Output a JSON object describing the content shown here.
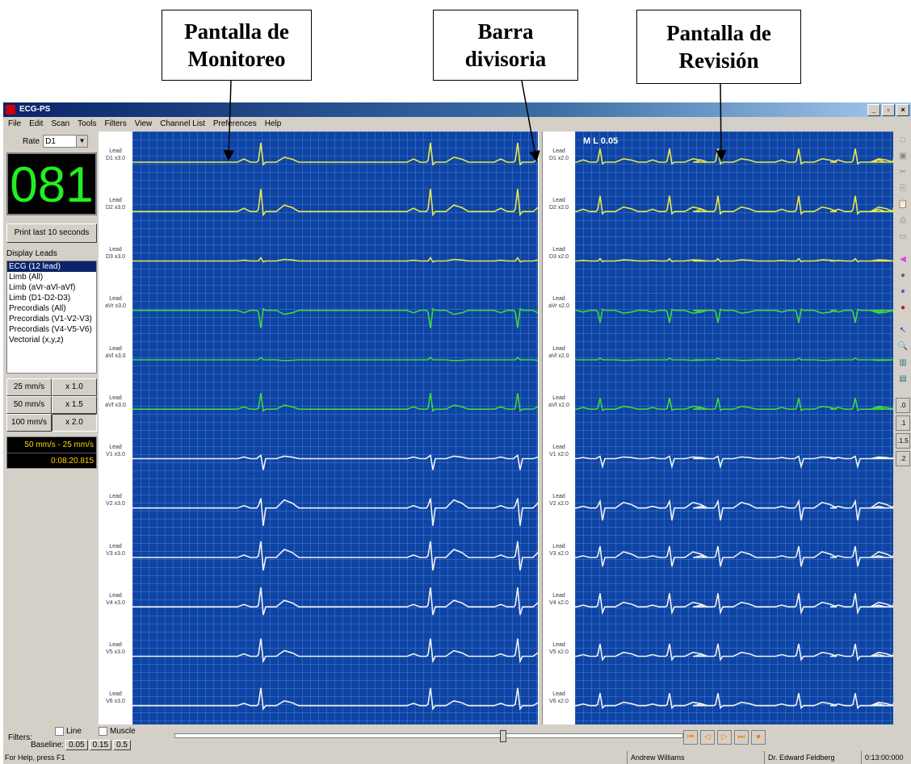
{
  "callouts": [
    {
      "line1": "Pantalla de",
      "line2": "Monitoreo"
    },
    {
      "line1": "Barra",
      "line2": "divisoria"
    },
    {
      "line1": "Pantalla de",
      "line2": "Revisión"
    }
  ],
  "window": {
    "title": "ECG-PS",
    "controls": {
      "minimize": "_",
      "maximize": "▫",
      "close": "×"
    }
  },
  "menu": [
    "File",
    "Edit",
    "Scan",
    "Tools",
    "Filters",
    "View",
    "Channel List",
    "Preferences",
    "Help"
  ],
  "left_panel": {
    "rate_label": "Rate",
    "rate_value": "D1",
    "heart_rate": "081",
    "print_button": "Print last 10 seconds",
    "display_leads_label": "Display Leads",
    "lead_options": [
      "ECG (12 lead)",
      "Limb (All)",
      "Limb (aVr-aVl-aVf)",
      "Limb (D1-D2-D3)",
      "Precordials (All)",
      "Precordials (V1-V2-V3)",
      "Precordials (V4-V5-V6)",
      "Vectorial (x,y,z)"
    ],
    "selected_lead_option": "ECG (12 lead)",
    "speed_buttons": [
      "25 mm/s",
      "50 mm/s",
      "100 mm/s"
    ],
    "gain_buttons": [
      "x 1.0",
      "x 1.5",
      "x 2.0"
    ],
    "speed_status": "50 mm/s - 25 mm/s",
    "time_status": "0:08:20.815"
  },
  "monitor": {
    "lead_word": "Lead",
    "leads": [
      {
        "name": "D1 x3.0",
        "color": "#e8e84a"
      },
      {
        "name": "D2 x3.0",
        "color": "#e8e84a"
      },
      {
        "name": "D3 x3.0",
        "color": "#e8e84a"
      },
      {
        "name": "aVr x3.0",
        "color": "#3ed63e"
      },
      {
        "name": "aVl x3.0",
        "color": "#3ed63e"
      },
      {
        "name": "aVf x3.0",
        "color": "#3ed63e"
      },
      {
        "name": "V1 x3.0",
        "color": "#f2f2f2"
      },
      {
        "name": "V2 x3.0",
        "color": "#f2f2f2"
      },
      {
        "name": "V3 x3.0",
        "color": "#f2f2f2"
      },
      {
        "name": "V4 x3.0",
        "color": "#f2f2f2"
      },
      {
        "name": "V5 x3.0",
        "color": "#f2f2f2"
      },
      {
        "name": "V6 x3.0",
        "color": "#f2f2f2"
      }
    ]
  },
  "review": {
    "ml_label": "M L 0.05",
    "leads": [
      "D1 x2.0",
      "D2 x2.0",
      "D3 x2.0",
      "aVr x2.0",
      "aVl x2.0",
      "aVf x2.0",
      "V1 x2.0",
      "V2 x2.0",
      "V3 x2.0",
      "V4 x2.0",
      "V5 x2.0",
      "V6 x2.0"
    ]
  },
  "toolbar_icons": [
    "new-icon",
    "save-icon",
    "cut-icon",
    "copy-icon",
    "paste-icon",
    "print-icon",
    "preview-icon",
    "marker-icon",
    "stop-icon",
    "pause-icon",
    "record-icon",
    "pointer-icon",
    "zoom-icon",
    "measure-icon",
    "report-icon"
  ],
  "toolbar_glyphs": [
    "□",
    "▣",
    "✂",
    "⎘",
    "📋",
    "⎙",
    "▭",
    "◀",
    "●",
    "⏸",
    "●",
    "↖",
    "🔍",
    "▥",
    "▤"
  ],
  "scale_buttons": [
    ".0",
    ".1",
    ".1.5",
    ".2"
  ],
  "bottom": {
    "filters_label": "Filters:",
    "line_label": "Line",
    "muscle_label": "Muscle",
    "baseline_label": "Baseline:",
    "baseline_options": [
      "0.05",
      "0.15",
      "0.5"
    ],
    "media_glyphs": [
      "⏮",
      "◁",
      "▷",
      "⏭",
      "⏺"
    ],
    "playback_position": 0.64
  },
  "statusbar": {
    "help": "For Help, press F1",
    "patient": "Andrew Williams",
    "doctor": "Dr. Edward Feldberg",
    "time": "0:13:00:000"
  }
}
